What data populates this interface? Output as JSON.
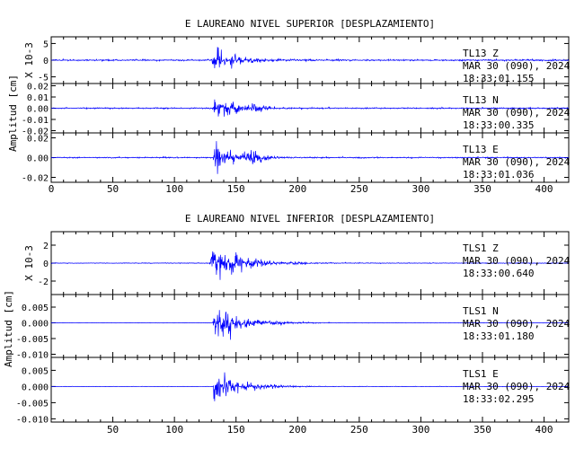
{
  "chart_data": [
    {
      "type": "line",
      "title": "E LAUREANO NIVEL SUPERIOR [DESPLAZAMIENTO]",
      "ylabel": "Amplitud [cm]",
      "xlim": [
        0,
        420
      ],
      "x_ticks": [
        "0",
        "50",
        "100",
        "150",
        "200",
        "250",
        "300",
        "350",
        "400"
      ],
      "grid": false,
      "series": [
        {
          "name": "TL13 Z",
          "station": "TL13",
          "component": "Z",
          "date": "MAR 30 (090), 2024",
          "time": "18:33:01.155",
          "scale_label": "X 10-3",
          "ylim": [
            -7,
            7
          ],
          "y_ticks": [
            "5",
            "0",
            "-5"
          ],
          "y_tick_values": [
            5,
            0,
            -5
          ],
          "peak": 5.5,
          "onset": 130,
          "decay": 16,
          "pre_noise": 0.3,
          "secondary": [],
          "color": "#0000ff"
        },
        {
          "name": "TL13 N",
          "station": "TL13",
          "component": "N",
          "date": "MAR 30 (090), 2024",
          "time": "18:33:00.335",
          "scale_label": "",
          "ylim": [
            -0.022,
            0.022
          ],
          "y_ticks": [
            "0.02",
            "0.01",
            "0.00",
            "-0.01",
            "-0.02"
          ],
          "y_tick_values": [
            0.02,
            0.01,
            0,
            -0.01,
            -0.02
          ],
          "peak": 0.019,
          "onset": 131,
          "decay": 12,
          "pre_noise": 0.0008,
          "secondary": [
            [
              165,
              0.006,
              10
            ]
          ],
          "color": "#0000ff"
        },
        {
          "name": "TL13 E",
          "station": "TL13",
          "component": "E",
          "date": "MAR 30 (090), 2024",
          "time": "18:33:01.036",
          "scale_label": "",
          "ylim": [
            -0.025,
            0.025
          ],
          "y_ticks": [
            "0.02",
            "0.00",
            "-0.02"
          ],
          "y_tick_values": [
            0.02,
            0,
            -0.02
          ],
          "peak": 0.021,
          "onset": 131,
          "decay": 11,
          "pre_noise": 0.0009,
          "secondary": [
            [
              165,
              0.008,
              9
            ]
          ],
          "color": "#0000ff"
        }
      ]
    },
    {
      "type": "line",
      "title": "E LAUREANO NIVEL INFERIOR [DESPLAZAMIENTO]",
      "ylabel": "Amplitud [cm]",
      "xlim": [
        0,
        420
      ],
      "x_ticks": [
        "50",
        "100",
        "150",
        "200",
        "250",
        "300",
        "350",
        "400"
      ],
      "grid": false,
      "series": [
        {
          "name": "TLS1 Z",
          "station": "TLS1",
          "component": "Z",
          "date": "MAR 30 (090), 2024",
          "time": "18:33:00.640",
          "scale_label": "X 10-3",
          "ylim": [
            -3.5,
            3.5
          ],
          "y_ticks": [
            "2",
            "0",
            "-2"
          ],
          "y_tick_values": [
            2,
            0,
            -2
          ],
          "peak": 3.2,
          "onset": 128,
          "decay": 22,
          "pre_noise": 0.05,
          "secondary": [],
          "color": "#0000ff"
        },
        {
          "name": "TLS1 N",
          "station": "TLS1",
          "component": "N",
          "date": "MAR 30 (090), 2024",
          "time": "18:33:01.180",
          "scale_label": "",
          "ylim": [
            -0.011,
            0.009
          ],
          "y_ticks": [
            "0.005",
            "0.000",
            "-0.005",
            "-0.010"
          ],
          "y_tick_values": [
            0.005,
            0,
            -0.005,
            -0.01
          ],
          "peak": 0.0085,
          "onset": 131,
          "decay": 20,
          "pre_noise": 8e-05,
          "secondary": [],
          "color": "#0000ff"
        },
        {
          "name": "TLS1 E",
          "station": "TLS1",
          "component": "E",
          "date": "MAR 30 (090), 2024",
          "time": "18:33:02.295",
          "scale_label": "",
          "ylim": [
            -0.011,
            0.009
          ],
          "y_ticks": [
            "0.005",
            "0.000",
            "-0.005",
            "-0.010"
          ],
          "y_tick_values": [
            0.005,
            0,
            -0.005,
            -0.01
          ],
          "peak": 0.007,
          "onset": 131,
          "decay": 20,
          "pre_noise": 8e-05,
          "secondary": [],
          "color": "#0000ff"
        }
      ]
    }
  ]
}
